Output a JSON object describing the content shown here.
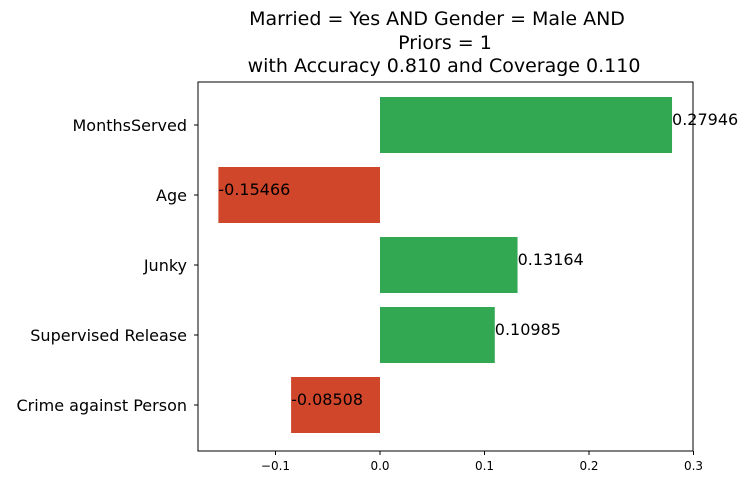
{
  "chart_data": {
    "type": "bar",
    "orientation": "horizontal",
    "title_lines": [
      "Married = Yes AND Gender = Male AND",
      "Priors = 1",
      "with Accuracy 0.810 and Coverage 0.110"
    ],
    "categories": [
      "MonthsServed",
      "Age",
      "Junky",
      "Supervised Release",
      "Crime against Person"
    ],
    "values": [
      0.27946,
      -0.15466,
      0.13164,
      0.10985,
      -0.08508
    ],
    "value_labels": [
      "0.27946",
      "-0.15466",
      "0.13164",
      "0.10985",
      "-0.08508"
    ],
    "xlim": [
      -0.175,
      0.3
    ],
    "xticks": [
      -0.1,
      0.0,
      0.1,
      0.2,
      0.3
    ],
    "xtick_labels": [
      "−0.1",
      "0.0",
      "0.1",
      "0.2",
      "0.3"
    ],
    "grid": false,
    "colors": {
      "positive": "#33a852",
      "negative": "#d0462a",
      "axis": "#000000"
    }
  }
}
